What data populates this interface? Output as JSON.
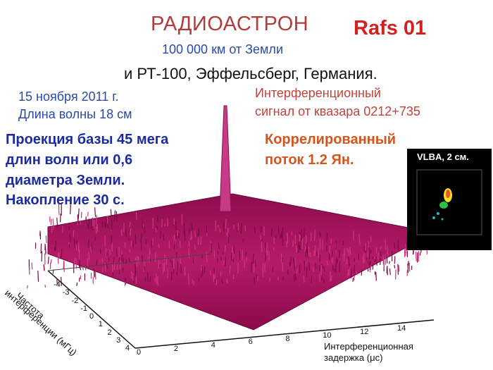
{
  "title": "РАДИОАСТРОН",
  "badge": "Rafs 01",
  "subtitle_distance": "100 000 км от Земли",
  "subtitle_station": "и РТ-100, Эффельсберг, Германия.",
  "date": "15 ноября 2011 г.",
  "wavelength": "Длина волны 18 см",
  "signal_caption": [
    "Интерференционный",
    "сигнал от квазара 0212+735"
  ],
  "projection_text": [
    "Проекция базы 45 мега",
    "длин волн или 0,6",
    "диаметра Земли.",
    "Накопление 30 с."
  ],
  "correlated_flux": [
    "Коррелированный",
    "поток 1.2 Ян."
  ],
  "inset": {
    "label": "VLBA, 2 см."
  },
  "plot": {
    "surface_color": "#a8115e",
    "peak_color": "#c63a86",
    "freq_axis_title": [
      "Частота",
      "интерференции (мГц)"
    ],
    "freq_ticks": [
      "-4",
      "-3",
      "-2",
      "-1",
      "0",
      "1",
      "2",
      "3",
      "4"
    ],
    "delay_axis_title": [
      "Интерференционная",
      "задержка (μс)"
    ],
    "delay_ticks": [
      "0",
      "2",
      "4",
      "6",
      "8",
      "10",
      "12",
      "14"
    ]
  }
}
